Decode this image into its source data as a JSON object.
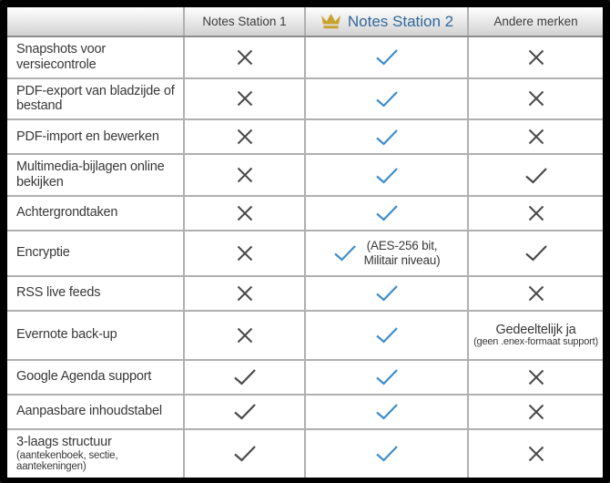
{
  "header": {
    "columns": [
      {
        "label": "Notes Station 1"
      },
      {
        "label": "Notes Station 2",
        "icon": "crown-icon"
      },
      {
        "label": "Andere merken"
      }
    ]
  },
  "colors": {
    "accent_blue": "#31689b",
    "check_blue": "#3e8dcb",
    "mark_gray": "#4a4a4a",
    "crown_gold": "#c9a22e"
  },
  "rows": [
    {
      "label": "Snapshots voor versiecontrole",
      "cells": [
        {
          "mark": "cross"
        },
        {
          "mark": "check_blue"
        },
        {
          "mark": "cross"
        }
      ]
    },
    {
      "label": "PDF-export van bladzijde of bestand",
      "cells": [
        {
          "mark": "cross"
        },
        {
          "mark": "check_blue"
        },
        {
          "mark": "cross"
        }
      ]
    },
    {
      "label": "PDF-import en bewerken",
      "cells": [
        {
          "mark": "cross"
        },
        {
          "mark": "check_blue"
        },
        {
          "mark": "cross"
        }
      ]
    },
    {
      "label": "Multimedia-bijlagen online bekijken",
      "cells": [
        {
          "mark": "cross"
        },
        {
          "mark": "check_blue"
        },
        {
          "mark": "check"
        }
      ]
    },
    {
      "label": "Achtergrondtaken",
      "cells": [
        {
          "mark": "cross"
        },
        {
          "mark": "check_blue"
        },
        {
          "mark": "cross"
        }
      ]
    },
    {
      "label": "Encryptie",
      "row_class": "r-encryptie",
      "cells": [
        {
          "mark": "cross"
        },
        {
          "mark": "check_blue",
          "note_lines": [
            "(AES-256 bit,",
            "Militair niveau)"
          ]
        },
        {
          "mark": "check"
        }
      ]
    },
    {
      "label": "RSS live feeds",
      "cells": [
        {
          "mark": "cross"
        },
        {
          "mark": "check_blue"
        },
        {
          "mark": "cross"
        }
      ]
    },
    {
      "label": "Evernote back-up",
      "row_class": "r-evernote",
      "cells": [
        {
          "mark": "cross"
        },
        {
          "mark": "check_blue"
        },
        {
          "mark": "none",
          "text": "Gedeeltelijk ja",
          "subtext": "(geen .enex-formaat support)"
        }
      ]
    },
    {
      "label": "Google Agenda support",
      "cells": [
        {
          "mark": "check"
        },
        {
          "mark": "check_blue"
        },
        {
          "mark": "cross"
        }
      ]
    },
    {
      "label": "Aanpasbare inhoudstabel",
      "cells": [
        {
          "mark": "check"
        },
        {
          "mark": "check_blue"
        },
        {
          "mark": "cross"
        }
      ]
    },
    {
      "label": "3-laags structuur",
      "sublabel": "(aantekenboek, sectie, aantekeningen)",
      "row_class": "r-structuur",
      "cells": [
        {
          "mark": "check"
        },
        {
          "mark": "check_blue"
        },
        {
          "mark": "cross"
        }
      ]
    }
  ],
  "chart_data": {
    "type": "table",
    "title": "Notes Station vergelijkingstabel",
    "columns": [
      "",
      "Notes Station 1",
      "Notes Station 2",
      "Andere merken"
    ],
    "rows": [
      [
        "Snapshots voor versiecontrole",
        "no",
        "yes",
        "no"
      ],
      [
        "PDF-export van bladzijde of bestand",
        "no",
        "yes",
        "no"
      ],
      [
        "PDF-import en bewerken",
        "no",
        "yes",
        "no"
      ],
      [
        "Multimedia-bijlagen online bekijken",
        "no",
        "yes",
        "yes"
      ],
      [
        "Achtergrondtaken",
        "no",
        "yes",
        "no"
      ],
      [
        "Encryptie",
        "no",
        "yes (AES-256 bit, Militair niveau)",
        "yes"
      ],
      [
        "RSS live feeds",
        "no",
        "yes",
        "no"
      ],
      [
        "Evernote back-up",
        "no",
        "yes",
        "Gedeeltelijk ja (geen .enex-formaat support)"
      ],
      [
        "Google Agenda support",
        "yes",
        "yes",
        "no"
      ],
      [
        "Aanpasbare inhoudstabel",
        "yes",
        "yes",
        "no"
      ],
      [
        "3-laags structuur (aantekenboek, sectie, aantekeningen)",
        "yes",
        "yes",
        "no"
      ]
    ]
  }
}
